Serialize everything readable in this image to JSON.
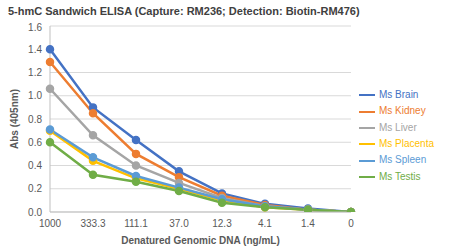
{
  "chart_data": {
    "type": "line",
    "title": "5-hmC Sandwich ELISA (Capture: RM236; Detection: Biotin-RM476)",
    "x_label": "Denatured Genomic DNA (ng/mL)",
    "y_label": "Abs (405nm)",
    "categories": [
      "1000",
      "333.3",
      "111.1",
      "37.0",
      "12.3",
      "4.1",
      "1.4",
      "0"
    ],
    "series": [
      {
        "name": "Ms Brain",
        "color": "#4472c4",
        "values": [
          1.4,
          0.9,
          0.62,
          0.35,
          0.16,
          0.07,
          0.03,
          0.0
        ]
      },
      {
        "name": "Ms Kidney",
        "color": "#ed7d31",
        "values": [
          1.29,
          0.85,
          0.5,
          0.3,
          0.14,
          0.06,
          0.02,
          0.0
        ]
      },
      {
        "name": "Ms Liver",
        "color": "#a5a5a5",
        "values": [
          1.06,
          0.66,
          0.4,
          0.25,
          0.12,
          0.05,
          0.02,
          0.0
        ]
      },
      {
        "name": "Ms Placenta",
        "color": "#ffc000",
        "values": [
          0.7,
          0.44,
          0.29,
          0.2,
          0.1,
          0.04,
          0.02,
          0.0
        ]
      },
      {
        "name": "Ms Spleen",
        "color": "#5b9bd5",
        "values": [
          0.71,
          0.47,
          0.31,
          0.21,
          0.11,
          0.05,
          0.02,
          0.0
        ]
      },
      {
        "name": "Ms Testis",
        "color": "#70ad47",
        "values": [
          0.6,
          0.32,
          0.26,
          0.18,
          0.08,
          0.04,
          0.02,
          0.0
        ]
      }
    ],
    "ylim": [
      0,
      1.6
    ],
    "yticks": [
      {
        "value": 0,
        "label": "0.0"
      },
      {
        "value": 0.2,
        "label": "0.2"
      },
      {
        "value": 0.4,
        "label": "0.4"
      },
      {
        "value": 0.6,
        "label": "0.6"
      },
      {
        "value": 0.8,
        "label": "0.8"
      },
      {
        "value": 1.0,
        "label": "1.0"
      },
      {
        "value": 1.2,
        "label": "1.2"
      },
      {
        "value": 1.4,
        "label": "1.4"
      },
      {
        "value": 1.6,
        "label": "1.6"
      }
    ],
    "grid": true,
    "legend": "right",
    "marker": "circle"
  }
}
